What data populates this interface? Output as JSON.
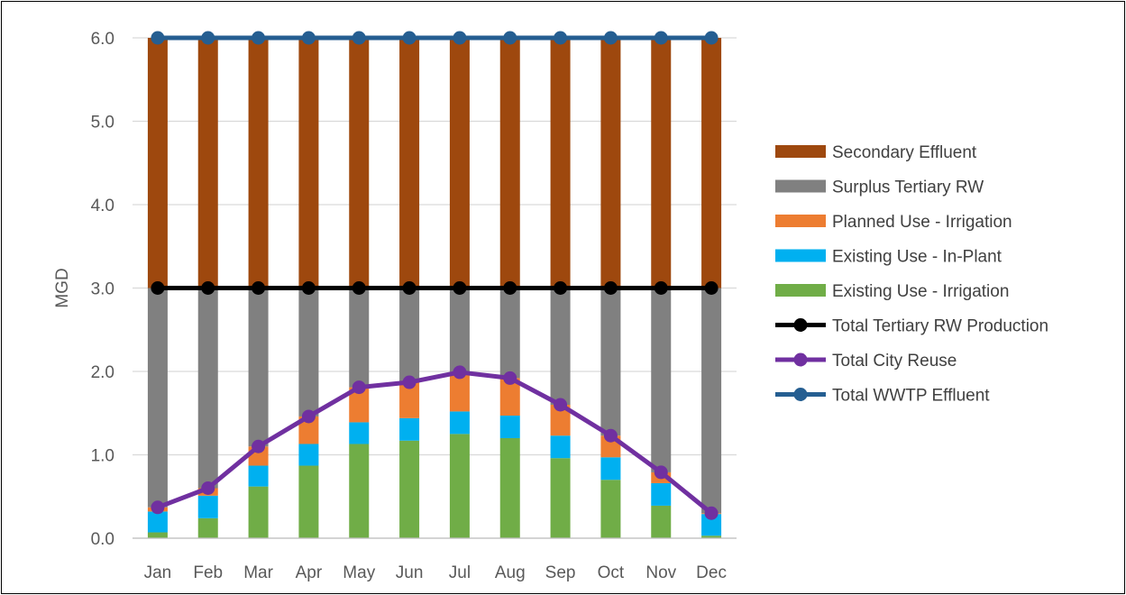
{
  "chart_data": {
    "type": "bar",
    "stacked": true,
    "categories": [
      "Jan",
      "Feb",
      "Mar",
      "Apr",
      "May",
      "Jun",
      "Jul",
      "Aug",
      "Sep",
      "Oct",
      "Nov",
      "Dec"
    ],
    "ylabel": "MGD",
    "ylim": [
      0,
      6
    ],
    "yticks": [
      "0.0",
      "1.0",
      "2.0",
      "3.0",
      "4.0",
      "5.0",
      "6.0"
    ],
    "grid": true,
    "legend_position": "right",
    "bar_series": [
      {
        "name": "Existing Use - Irrigation",
        "color": "#70AD47",
        "values": [
          0.07,
          0.24,
          0.62,
          0.87,
          1.13,
          1.17,
          1.25,
          1.2,
          0.96,
          0.7,
          0.39,
          0.03
        ]
      },
      {
        "name": "Existing Use - In-Plant",
        "color": "#00B0F0",
        "values": [
          0.25,
          0.27,
          0.25,
          0.26,
          0.26,
          0.27,
          0.27,
          0.27,
          0.27,
          0.27,
          0.27,
          0.26
        ]
      },
      {
        "name": "Planned Use - Irrigation",
        "color": "#ED7D31",
        "values": [
          0.05,
          0.09,
          0.23,
          0.33,
          0.42,
          0.43,
          0.47,
          0.45,
          0.37,
          0.26,
          0.13,
          0.01
        ]
      },
      {
        "name": "Surplus Tertiary RW",
        "color": "#808080",
        "values": [
          2.63,
          2.4,
          1.9,
          1.54,
          1.19,
          1.13,
          1.01,
          1.08,
          1.4,
          1.77,
          2.21,
          2.7
        ]
      },
      {
        "name": "Secondary Effluent",
        "color": "#9E480E",
        "values": [
          3.0,
          3.0,
          3.0,
          3.0,
          3.0,
          3.0,
          3.0,
          3.0,
          3.0,
          3.0,
          3.0,
          3.0
        ]
      }
    ],
    "line_series": [
      {
        "name": "Total Tertiary RW Production",
        "color": "#000000",
        "values": [
          3.0,
          3.0,
          3.0,
          3.0,
          3.0,
          3.0,
          3.0,
          3.0,
          3.0,
          3.0,
          3.0,
          3.0
        ]
      },
      {
        "name": "Total City Reuse",
        "color": "#7030A0",
        "values": [
          0.37,
          0.6,
          1.1,
          1.46,
          1.81,
          1.87,
          1.99,
          1.92,
          1.6,
          1.23,
          0.79,
          0.3
        ]
      },
      {
        "name": "Total WWTP Effluent",
        "color": "#255E91",
        "values": [
          6.0,
          6.0,
          6.0,
          6.0,
          6.0,
          6.0,
          6.0,
          6.0,
          6.0,
          6.0,
          6.0,
          6.0
        ]
      }
    ],
    "legend_order": [
      "Secondary Effluent",
      "Surplus Tertiary RW",
      "Planned Use - Irrigation",
      "Existing Use - In-Plant",
      "Existing Use - Irrigation",
      "Total Tertiary RW Production",
      "Total City Reuse",
      "Total WWTP Effluent"
    ]
  }
}
